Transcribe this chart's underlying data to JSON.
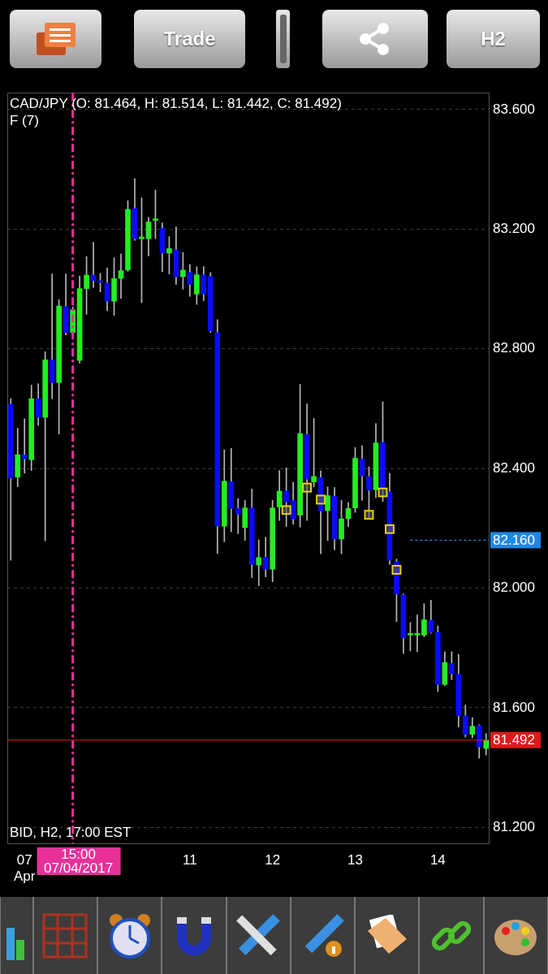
{
  "chart_data": {
    "type": "candlestick",
    "title": "CAD/JPY (O: 81.464, H: 81.514, L: 81.442, C: 81.492)",
    "annotations": [
      "F (7)",
      "BID, H2, 17:00 EST",
      "Trade",
      "H2",
      "15:00 07/04/2017"
    ],
    "categories": [
      null,
      null,
      "07 Apr",
      null,
      null,
      null,
      null,
      null,
      null,
      null,
      null,
      null,
      null,
      null,
      null,
      null,
      null,
      null,
      null,
      null,
      null,
      null,
      null,
      null,
      null,
      null,
      "11",
      null,
      null,
      null,
      null,
      null,
      null,
      null,
      null,
      null,
      null,
      null,
      "12",
      null,
      null,
      null,
      null,
      null,
      null,
      null,
      null,
      null,
      null,
      null,
      "13",
      null,
      null,
      null,
      null,
      null,
      null,
      null,
      null,
      null,
      null,
      null,
      "14",
      null,
      null,
      null,
      null,
      null,
      null,
      null
    ],
    "ohlc": [
      [
        82.614,
        82.633,
        82.093,
        82.368
      ],
      [
        82.371,
        82.534,
        82.339,
        82.446
      ],
      [
        82.445,
        82.566,
        82.384,
        82.432
      ],
      [
        82.429,
        82.678,
        82.393,
        82.633
      ],
      [
        82.633,
        82.683,
        82.544,
        82.571
      ],
      [
        82.571,
        82.79,
        82.158,
        82.763
      ],
      [
        82.763,
        83.05,
        82.633,
        82.687
      ],
      [
        82.687,
        82.964,
        82.515,
        82.943
      ],
      [
        82.941,
        83.05,
        82.846,
        82.854
      ],
      [
        82.854,
        82.94,
        82.846,
        82.93
      ],
      [
        82.761,
        83.043,
        82.752,
        83.001
      ],
      [
        83.001,
        83.108,
        82.915,
        83.046
      ],
      [
        83.046,
        83.156,
        83.004,
        83.028
      ],
      [
        83.026,
        83.052,
        82.99,
        83.022
      ],
      [
        83.019,
        83.07,
        82.927,
        82.959
      ],
      [
        82.959,
        83.104,
        82.912,
        83.035
      ],
      [
        83.035,
        83.117,
        82.968,
        83.061
      ],
      [
        83.064,
        83.295,
        83.059,
        83.266
      ],
      [
        83.269,
        83.369,
        83.162,
        83.168
      ],
      [
        83.168,
        83.304,
        82.954,
        83.168
      ],
      [
        83.168,
        83.239,
        83.111,
        83.224
      ],
      [
        83.229,
        83.331,
        83.168,
        83.229
      ],
      [
        83.202,
        83.221,
        83.057,
        83.12
      ],
      [
        83.12,
        83.175,
        83.05,
        83.135
      ],
      [
        83.13,
        83.207,
        83.015,
        83.041
      ],
      [
        83.041,
        83.122,
        82.999,
        83.063
      ],
      [
        83.055,
        83.082,
        82.975,
        83.015
      ],
      [
        82.983,
        83.074,
        82.948,
        83.047
      ],
      [
        83.047,
        83.074,
        82.961,
        82.983
      ],
      [
        83.041,
        83.055,
        82.854,
        82.86
      ],
      [
        82.854,
        82.897,
        82.115,
        82.208
      ],
      [
        82.207,
        82.462,
        82.155,
        82.357
      ],
      [
        82.355,
        82.467,
        82.188,
        82.266
      ],
      [
        82.266,
        82.299,
        82.182,
        82.247
      ],
      [
        82.202,
        82.293,
        82.159,
        82.268
      ],
      [
        82.268,
        82.331,
        82.035,
        82.079
      ],
      [
        82.077,
        82.161,
        82.008,
        82.102
      ],
      [
        82.103,
        82.17,
        82.037,
        82.063
      ],
      [
        82.063,
        82.293,
        82.021,
        82.268
      ],
      [
        82.271,
        82.393,
        82.226,
        82.324
      ],
      [
        82.324,
        82.402,
        82.206,
        82.288
      ],
      [
        82.293,
        82.354,
        82.213,
        82.231
      ],
      [
        82.244,
        82.681,
        82.204,
        82.516
      ],
      [
        82.513,
        82.616,
        82.226,
        82.364
      ],
      [
        82.355,
        82.567,
        82.338,
        82.373
      ],
      [
        82.369,
        82.392,
        82.115,
        82.258
      ],
      [
        82.259,
        82.338,
        82.159,
        82.309
      ],
      [
        82.306,
        82.336,
        82.128,
        82.164
      ],
      [
        82.164,
        82.293,
        82.115,
        82.231
      ],
      [
        82.232,
        82.286,
        82.206,
        82.266
      ],
      [
        82.268,
        82.47,
        82.253,
        82.434
      ],
      [
        82.431,
        82.476,
        82.293,
        82.375
      ],
      [
        82.373,
        82.405,
        82.231,
        82.327
      ],
      [
        82.329,
        82.55,
        82.302,
        82.485
      ],
      [
        82.487,
        82.623,
        82.289,
        82.329
      ],
      [
        82.322,
        82.384,
        82.079,
        82.093
      ],
      [
        82.088,
        82.097,
        81.888,
        81.98
      ],
      [
        81.977,
        81.981,
        81.781,
        81.834
      ],
      [
        81.843,
        81.885,
        81.79,
        81.843
      ],
      [
        81.843,
        81.91,
        81.787,
        81.843
      ],
      [
        81.843,
        81.948,
        81.837,
        81.894
      ],
      [
        81.892,
        81.959,
        81.849,
        81.852
      ],
      [
        81.852,
        81.873,
        81.654,
        81.678
      ],
      [
        81.678,
        81.787,
        81.674,
        81.751
      ],
      [
        81.748,
        81.787,
        81.694,
        81.714
      ],
      [
        81.712,
        81.778,
        81.536,
        81.573
      ],
      [
        81.573,
        81.609,
        81.502,
        81.511
      ],
      [
        81.511,
        81.567,
        81.499,
        81.538
      ],
      [
        81.54,
        81.543,
        81.431,
        81.469
      ],
      [
        81.464,
        81.514,
        81.442,
        81.492
      ]
    ],
    "colors": [
      "#0a0aff",
      "#22ee22",
      "#0a0aff",
      "#22ee22",
      "#0a0aff",
      "#22ee22",
      "#0a0aff",
      "#22ee22",
      "#0a0aff",
      "#22ee22",
      "#22ee22",
      "#22ee22",
      "#0a0aff",
      "#0a0aff",
      "#0a0aff",
      "#22ee22",
      "#22ee22",
      "#22ee22",
      "#0a0aff",
      "#22ee22",
      "#22ee22",
      "#22ee22",
      "#0a0aff",
      "#22ee22",
      "#0a0aff",
      "#22ee22",
      "#0a0aff",
      "#22ee22",
      "#0a0aff",
      "#0a0aff",
      "#0a0aff",
      "#22ee22",
      "#0a0aff",
      "#0a0aff",
      "#22ee22",
      "#0a0aff",
      "#22ee22",
      "#0a0aff",
      "#22ee22",
      "#22ee22",
      "#0a0aff",
      "#0a0aff",
      "#22ee22",
      "#0a0aff",
      "#22ee22",
      "#0a0aff",
      "#22ee22",
      "#0a0aff",
      "#22ee22",
      "#22ee22",
      "#22ee22",
      "#0a0aff",
      "#0a0aff",
      "#22ee22",
      "#0a0aff",
      "#0a0aff",
      "#0a0aff",
      "#0a0aff",
      "#22ee22",
      "#22ee22",
      "#22ee22",
      "#0a0aff",
      "#0a0aff",
      "#22ee22",
      "#0a0aff",
      "#0a0aff",
      "#0a0aff",
      "#22ee22",
      "#0a0aff",
      "#22ee22"
    ],
    "series": [
      {
        "type": "scatter",
        "color": "#e6d200",
        "values": [
          null,
          null,
          null,
          null,
          null,
          null,
          null,
          null,
          null,
          null,
          null,
          null,
          null,
          null,
          null,
          null,
          null,
          null,
          null,
          null,
          null,
          null,
          null,
          null,
          null,
          null,
          null,
          null,
          null,
          null,
          null,
          null,
          null,
          null,
          null,
          null,
          null,
          null,
          null,
          null,
          82.261,
          null,
          null,
          82.336,
          null,
          82.296,
          null,
          null,
          null,
          null,
          null,
          null,
          82.245,
          null,
          82.32,
          82.197,
          82.061,
          null,
          null,
          null,
          null,
          null,
          null,
          null,
          null,
          null,
          null,
          null,
          null,
          null
        ]
      }
    ],
    "marker": "square",
    "ylim": [
      81.144,
      83.656
    ],
    "yticks": [
      {
        "value": 81.2,
        "label": "81.200"
      },
      {
        "value": 81.6,
        "label": "81.600"
      },
      {
        "value": 82.0,
        "label": "82.000"
      },
      {
        "value": 82.4,
        "label": "82.400"
      },
      {
        "value": 82.8,
        "label": "82.800"
      },
      {
        "value": 83.2,
        "label": "83.200"
      },
      {
        "value": 83.6,
        "label": "83.600"
      }
    ],
    "grid": "y",
    "legend": false,
    "ref_lines": [
      {
        "axis": "y",
        "value": 82.16,
        "label": "82.160",
        "color": "#1e88e5",
        "line_style": "dotted"
      },
      {
        "axis": "y",
        "value": 81.492,
        "label": "81.492",
        "color": "#e01818",
        "line_style": "solid"
      }
    ]
  }
}
